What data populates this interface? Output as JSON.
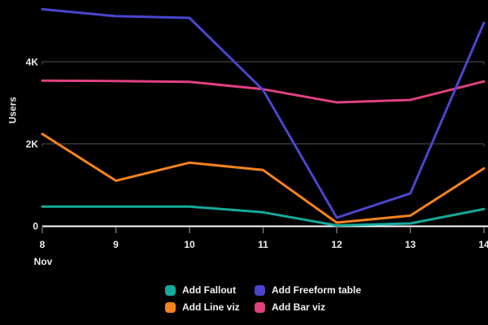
{
  "chart_data": {
    "type": "line",
    "title": "",
    "ylabel": "Users",
    "xlabel": "Nov",
    "categories": [
      "8",
      "9",
      "10",
      "11",
      "12",
      "13",
      "14"
    ],
    "series": [
      {
        "name": "Add Fallout",
        "color": "#14a99b",
        "values": [
          470,
          470,
          470,
          330,
          10,
          60,
          410
        ]
      },
      {
        "name": "Add Freeform table",
        "color": "#4a45cd",
        "values": [
          5280,
          5110,
          5070,
          3310,
          200,
          790,
          4950
        ]
      },
      {
        "name": "Add Line viz",
        "color": "#f5831c",
        "values": [
          2240,
          1100,
          1540,
          1360,
          80,
          250,
          1400
        ]
      },
      {
        "name": "Add Bar viz",
        "color": "#e0417f",
        "values": [
          3540,
          3530,
          3510,
          3330,
          3010,
          3070,
          3520
        ]
      }
    ],
    "yticks": [
      {
        "value": 0,
        "label": "0"
      },
      {
        "value": 2000,
        "label": "2K"
      },
      {
        "value": 4000,
        "label": "4K"
      }
    ],
    "ylim": [
      0,
      5500
    ],
    "grid": "horizontal",
    "legend_position": "bottom",
    "theme": {
      "background": "#000000",
      "axis_color": "#ffffff",
      "grid_color": "#545454",
      "tick_color": "#8a8a8a",
      "text_color": "#ececec"
    }
  }
}
